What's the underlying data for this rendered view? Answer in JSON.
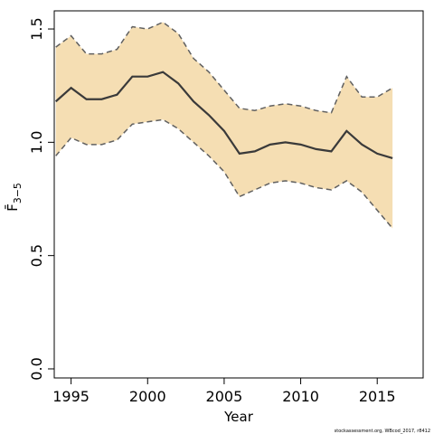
{
  "chart_data": {
    "type": "line",
    "xlabel": "Year",
    "ylabel": "F̄",
    "ylabel_subscript": "3−5",
    "credit": "stockassessment.org, WBcod_2017, r8412",
    "xlim": [
      1993.9,
      2018.0
    ],
    "ylim": [
      -0.04,
      1.58
    ],
    "x_ticks": [
      1995,
      2000,
      2005,
      2010,
      2015
    ],
    "x_tick_labels": [
      "1995",
      "2000",
      "2005",
      "2010",
      "2015"
    ],
    "y_ticks": [
      0.0,
      0.5,
      1.0,
      1.5
    ],
    "y_tick_labels": [
      "0.0",
      "0.5",
      "1.0",
      "1.5"
    ],
    "colors": {
      "band": "#f5deb3",
      "line": "#3a3a3a",
      "bound": "#606060",
      "axis": "#000000"
    },
    "x": [
      1994,
      1995,
      1996,
      1997,
      1998,
      1999,
      2000,
      2001,
      2002,
      2003,
      2004,
      2005,
      2006,
      2007,
      2008,
      2009,
      2010,
      2011,
      2012,
      2013,
      2014,
      2015,
      2016
    ],
    "series": [
      {
        "role": "estimate",
        "values": [
          1.18,
          1.24,
          1.19,
          1.19,
          1.21,
          1.29,
          1.29,
          1.31,
          1.26,
          1.18,
          1.12,
          1.05,
          0.95,
          0.96,
          0.99,
          1.0,
          0.99,
          0.97,
          0.96,
          1.05,
          0.99,
          0.95,
          0.93
        ]
      },
      {
        "role": "upper",
        "values": [
          1.42,
          1.47,
          1.39,
          1.39,
          1.41,
          1.51,
          1.5,
          1.53,
          1.48,
          1.37,
          1.31,
          1.23,
          1.15,
          1.14,
          1.16,
          1.17,
          1.16,
          1.14,
          1.13,
          1.29,
          1.2,
          1.2,
          1.24
        ]
      },
      {
        "role": "lower",
        "values": [
          0.94,
          1.02,
          0.99,
          0.99,
          1.01,
          1.08,
          1.09,
          1.1,
          1.06,
          1.0,
          0.94,
          0.87,
          0.76,
          0.79,
          0.82,
          0.83,
          0.82,
          0.8,
          0.79,
          0.83,
          0.78,
          0.7,
          0.62
        ]
      }
    ]
  }
}
